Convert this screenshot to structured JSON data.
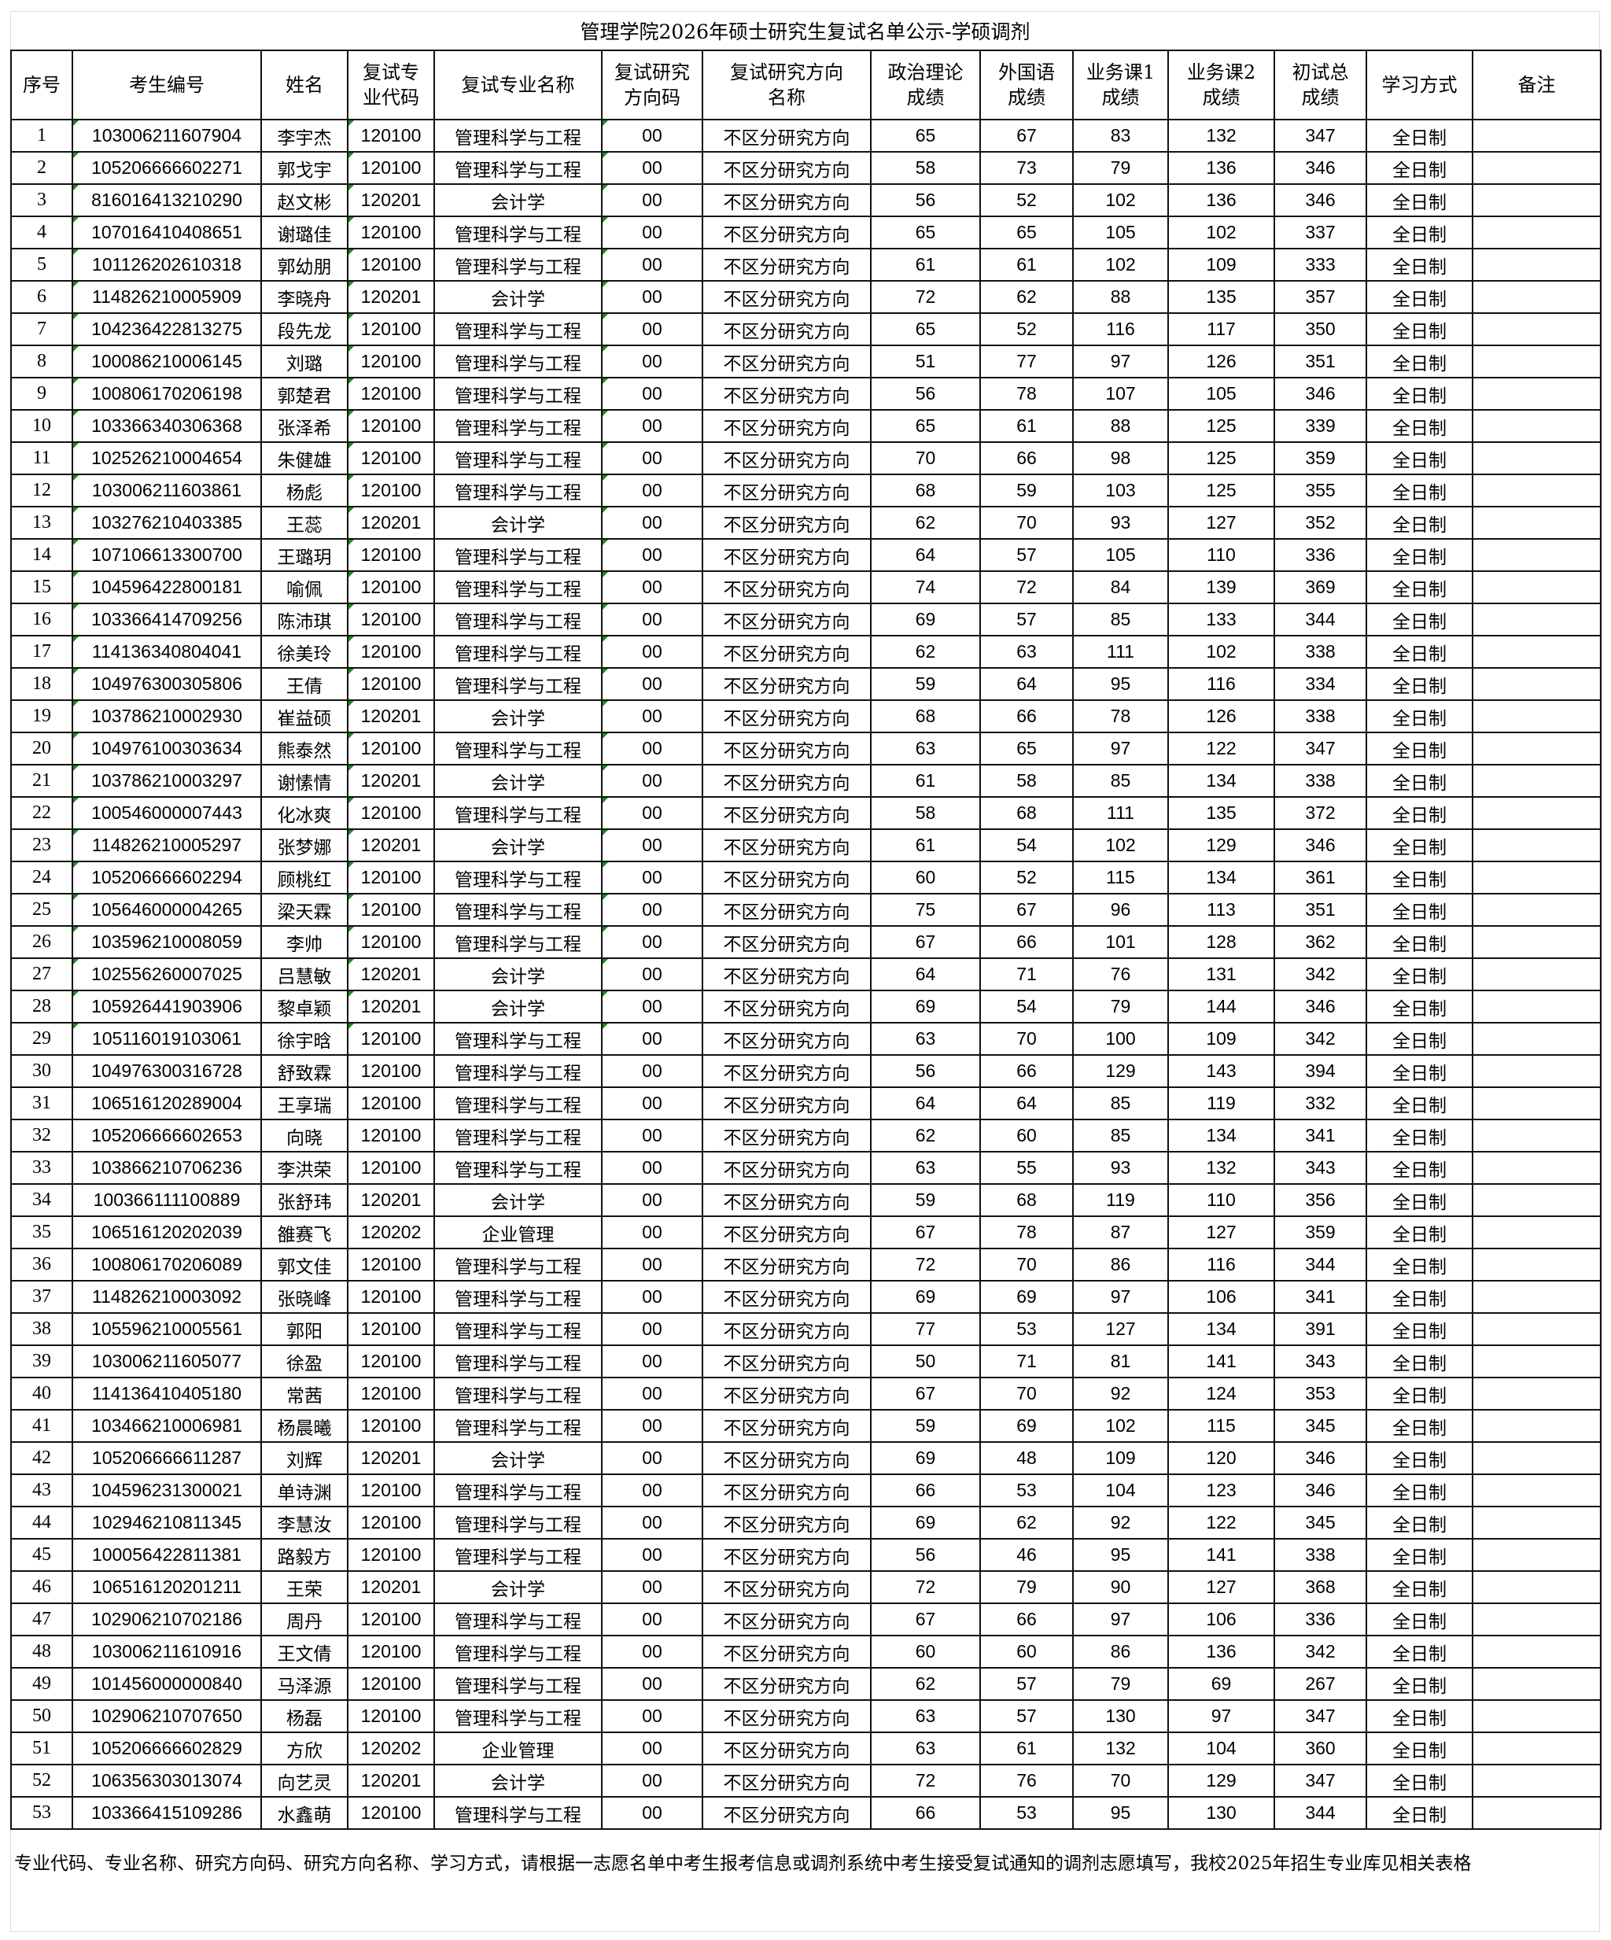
{
  "title": "管理学院2026年硕士研究生复试名单公示-学硕调剂",
  "headers": [
    "序号",
    "考生编号",
    "姓名",
    "复试专业代码",
    "复试专业名称",
    "复试研究方向码",
    "复试研究方向名称",
    "政治理论成绩",
    "外国语成绩",
    "业务课1成绩",
    "业务课2成绩",
    "初试总成绩",
    "学习方式",
    "备注"
  ],
  "header_lines": [
    [
      "序号"
    ],
    [
      "考生编号"
    ],
    [
      "姓名"
    ],
    [
      "复试专",
      "业代码"
    ],
    [
      "复试专业名称"
    ],
    [
      "复试研究",
      "方向码"
    ],
    [
      "复试研究方向",
      "名称"
    ],
    [
      "政治理论",
      "成绩"
    ],
    [
      "外国语",
      "成绩"
    ],
    [
      "业务课1",
      "成绩"
    ],
    [
      "业务课2",
      "成绩"
    ],
    [
      "初试总",
      "成绩"
    ],
    [
      "学习方式"
    ],
    [
      "备注"
    ]
  ],
  "marker_color": "#1f8a1f",
  "rows": [
    [
      "1",
      "103006211607904",
      "李宇杰",
      "120100",
      "管理科学与工程",
      "00",
      "不区分研究方向",
      "65",
      "67",
      "83",
      "132",
      "347",
      "全日制",
      ""
    ],
    [
      "2",
      "105206666602271",
      "郭戈宇",
      "120100",
      "管理科学与工程",
      "00",
      "不区分研究方向",
      "58",
      "73",
      "79",
      "136",
      "346",
      "全日制",
      ""
    ],
    [
      "3",
      "816016413210290",
      "赵文彬",
      "120201",
      "会计学",
      "00",
      "不区分研究方向",
      "56",
      "52",
      "102",
      "136",
      "346",
      "全日制",
      ""
    ],
    [
      "4",
      "107016410408651",
      "谢璐佳",
      "120100",
      "管理科学与工程",
      "00",
      "不区分研究方向",
      "65",
      "65",
      "105",
      "102",
      "337",
      "全日制",
      ""
    ],
    [
      "5",
      "101126202610318",
      "郭幼朋",
      "120100",
      "管理科学与工程",
      "00",
      "不区分研究方向",
      "61",
      "61",
      "102",
      "109",
      "333",
      "全日制",
      ""
    ],
    [
      "6",
      "114826210005909",
      "李晓舟",
      "120201",
      "会计学",
      "00",
      "不区分研究方向",
      "72",
      "62",
      "88",
      "135",
      "357",
      "全日制",
      ""
    ],
    [
      "7",
      "104236422813275",
      "段先龙",
      "120100",
      "管理科学与工程",
      "00",
      "不区分研究方向",
      "65",
      "52",
      "116",
      "117",
      "350",
      "全日制",
      ""
    ],
    [
      "8",
      "100086210006145",
      "刘璐",
      "120100",
      "管理科学与工程",
      "00",
      "不区分研究方向",
      "51",
      "77",
      "97",
      "126",
      "351",
      "全日制",
      ""
    ],
    [
      "9",
      "100806170206198",
      "郭楚君",
      "120100",
      "管理科学与工程",
      "00",
      "不区分研究方向",
      "56",
      "78",
      "107",
      "105",
      "346",
      "全日制",
      ""
    ],
    [
      "10",
      "103366340306368",
      "张泽希",
      "120100",
      "管理科学与工程",
      "00",
      "不区分研究方向",
      "65",
      "61",
      "88",
      "125",
      "339",
      "全日制",
      ""
    ],
    [
      "11",
      "102526210004654",
      "朱健雄",
      "120100",
      "管理科学与工程",
      "00",
      "不区分研究方向",
      "70",
      "66",
      "98",
      "125",
      "359",
      "全日制",
      ""
    ],
    [
      "12",
      "103006211603861",
      "杨彪",
      "120100",
      "管理科学与工程",
      "00",
      "不区分研究方向",
      "68",
      "59",
      "103",
      "125",
      "355",
      "全日制",
      ""
    ],
    [
      "13",
      "103276210403385",
      "王蕊",
      "120201",
      "会计学",
      "00",
      "不区分研究方向",
      "62",
      "70",
      "93",
      "127",
      "352",
      "全日制",
      ""
    ],
    [
      "14",
      "107106613300700",
      "王璐玥",
      "120100",
      "管理科学与工程",
      "00",
      "不区分研究方向",
      "64",
      "57",
      "105",
      "110",
      "336",
      "全日制",
      ""
    ],
    [
      "15",
      "104596422800181",
      "喻佩",
      "120100",
      "管理科学与工程",
      "00",
      "不区分研究方向",
      "74",
      "72",
      "84",
      "139",
      "369",
      "全日制",
      ""
    ],
    [
      "16",
      "103366414709256",
      "陈沛琪",
      "120100",
      "管理科学与工程",
      "00",
      "不区分研究方向",
      "69",
      "57",
      "85",
      "133",
      "344",
      "全日制",
      ""
    ],
    [
      "17",
      "114136340804041",
      "徐美玲",
      "120100",
      "管理科学与工程",
      "00",
      "不区分研究方向",
      "62",
      "63",
      "111",
      "102",
      "338",
      "全日制",
      ""
    ],
    [
      "18",
      "104976300305806",
      "王倩",
      "120100",
      "管理科学与工程",
      "00",
      "不区分研究方向",
      "59",
      "64",
      "95",
      "116",
      "334",
      "全日制",
      ""
    ],
    [
      "19",
      "103786210002930",
      "崔益硕",
      "120201",
      "会计学",
      "00",
      "不区分研究方向",
      "68",
      "66",
      "78",
      "126",
      "338",
      "全日制",
      ""
    ],
    [
      "20",
      "104976100303634",
      "熊泰然",
      "120100",
      "管理科学与工程",
      "00",
      "不区分研究方向",
      "63",
      "65",
      "97",
      "122",
      "347",
      "全日制",
      ""
    ],
    [
      "21",
      "103786210003297",
      "谢愫情",
      "120201",
      "会计学",
      "00",
      "不区分研究方向",
      "61",
      "58",
      "85",
      "134",
      "338",
      "全日制",
      ""
    ],
    [
      "22",
      "100546000007443",
      "化冰爽",
      "120100",
      "管理科学与工程",
      "00",
      "不区分研究方向",
      "58",
      "68",
      "111",
      "135",
      "372",
      "全日制",
      ""
    ],
    [
      "23",
      "114826210005297",
      "张梦娜",
      "120201",
      "会计学",
      "00",
      "不区分研究方向",
      "61",
      "54",
      "102",
      "129",
      "346",
      "全日制",
      ""
    ],
    [
      "24",
      "105206666602294",
      "顾桃红",
      "120100",
      "管理科学与工程",
      "00",
      "不区分研究方向",
      "60",
      "52",
      "115",
      "134",
      "361",
      "全日制",
      ""
    ],
    [
      "25",
      "105646000004265",
      "梁天霖",
      "120100",
      "管理科学与工程",
      "00",
      "不区分研究方向",
      "75",
      "67",
      "96",
      "113",
      "351",
      "全日制",
      ""
    ],
    [
      "26",
      "103596210008059",
      "李帅",
      "120100",
      "管理科学与工程",
      "00",
      "不区分研究方向",
      "67",
      "66",
      "101",
      "128",
      "362",
      "全日制",
      ""
    ],
    [
      "27",
      "102556260007025",
      "吕慧敏",
      "120201",
      "会计学",
      "00",
      "不区分研究方向",
      "64",
      "71",
      "76",
      "131",
      "342",
      "全日制",
      ""
    ],
    [
      "28",
      "105926441903906",
      "黎卓颖",
      "120201",
      "会计学",
      "00",
      "不区分研究方向",
      "69",
      "54",
      "79",
      "144",
      "346",
      "全日制",
      ""
    ],
    [
      "29",
      "105116019103061",
      "徐宇晗",
      "120100",
      "管理科学与工程",
      "00",
      "不区分研究方向",
      "63",
      "70",
      "100",
      "109",
      "342",
      "全日制",
      ""
    ],
    [
      "30",
      "104976300316728",
      "舒致霖",
      "120100",
      "管理科学与工程",
      "00",
      "不区分研究方向",
      "56",
      "66",
      "129",
      "143",
      "394",
      "全日制",
      ""
    ],
    [
      "31",
      "106516120289004",
      "王享瑞",
      "120100",
      "管理科学与工程",
      "00",
      "不区分研究方向",
      "64",
      "64",
      "85",
      "119",
      "332",
      "全日制",
      ""
    ],
    [
      "32",
      "105206666602653",
      "向晓",
      "120100",
      "管理科学与工程",
      "00",
      "不区分研究方向",
      "62",
      "60",
      "85",
      "134",
      "341",
      "全日制",
      ""
    ],
    [
      "33",
      "103866210706236",
      "李洪荣",
      "120100",
      "管理科学与工程",
      "00",
      "不区分研究方向",
      "63",
      "55",
      "93",
      "132",
      "343",
      "全日制",
      ""
    ],
    [
      "34",
      "100366111100889",
      "张舒玮",
      "120201",
      "会计学",
      "00",
      "不区分研究方向",
      "59",
      "68",
      "119",
      "110",
      "356",
      "全日制",
      ""
    ],
    [
      "35",
      "106516120202039",
      "雒赛飞",
      "120202",
      "企业管理",
      "00",
      "不区分研究方向",
      "67",
      "78",
      "87",
      "127",
      "359",
      "全日制",
      ""
    ],
    [
      "36",
      "100806170206089",
      "郭文佳",
      "120100",
      "管理科学与工程",
      "00",
      "不区分研究方向",
      "72",
      "70",
      "86",
      "116",
      "344",
      "全日制",
      ""
    ],
    [
      "37",
      "114826210003092",
      "张晓峰",
      "120100",
      "管理科学与工程",
      "00",
      "不区分研究方向",
      "69",
      "69",
      "97",
      "106",
      "341",
      "全日制",
      ""
    ],
    [
      "38",
      "105596210005561",
      "郭阳",
      "120100",
      "管理科学与工程",
      "00",
      "不区分研究方向",
      "77",
      "53",
      "127",
      "134",
      "391",
      "全日制",
      ""
    ],
    [
      "39",
      "103006211605077",
      "徐盈",
      "120100",
      "管理科学与工程",
      "00",
      "不区分研究方向",
      "50",
      "71",
      "81",
      "141",
      "343",
      "全日制",
      ""
    ],
    [
      "40",
      "114136410405180",
      "常茜",
      "120100",
      "管理科学与工程",
      "00",
      "不区分研究方向",
      "67",
      "70",
      "92",
      "124",
      "353",
      "全日制",
      ""
    ],
    [
      "41",
      "103466210006981",
      "杨晨曦",
      "120100",
      "管理科学与工程",
      "00",
      "不区分研究方向",
      "59",
      "69",
      "102",
      "115",
      "345",
      "全日制",
      ""
    ],
    [
      "42",
      "105206666611287",
      "刘辉",
      "120201",
      "会计学",
      "00",
      "不区分研究方向",
      "69",
      "48",
      "109",
      "120",
      "346",
      "全日制",
      ""
    ],
    [
      "43",
      "104596231300021",
      "单诗渊",
      "120100",
      "管理科学与工程",
      "00",
      "不区分研究方向",
      "66",
      "53",
      "104",
      "123",
      "346",
      "全日制",
      ""
    ],
    [
      "44",
      "102946210811345",
      "李慧汝",
      "120100",
      "管理科学与工程",
      "00",
      "不区分研究方向",
      "69",
      "62",
      "92",
      "122",
      "345",
      "全日制",
      ""
    ],
    [
      "45",
      "100056422811381",
      "路毅方",
      "120100",
      "管理科学与工程",
      "00",
      "不区分研究方向",
      "56",
      "46",
      "95",
      "141",
      "338",
      "全日制",
      ""
    ],
    [
      "46",
      "106516120201211",
      "王荣",
      "120201",
      "会计学",
      "00",
      "不区分研究方向",
      "72",
      "79",
      "90",
      "127",
      "368",
      "全日制",
      ""
    ],
    [
      "47",
      "102906210702186",
      "周丹",
      "120100",
      "管理科学与工程",
      "00",
      "不区分研究方向",
      "67",
      "66",
      "97",
      "106",
      "336",
      "全日制",
      ""
    ],
    [
      "48",
      "103006211610916",
      "王文倩",
      "120100",
      "管理科学与工程",
      "00",
      "不区分研究方向",
      "60",
      "60",
      "86",
      "136",
      "342",
      "全日制",
      ""
    ],
    [
      "49",
      "101456000000840",
      "马泽源",
      "120100",
      "管理科学与工程",
      "00",
      "不区分研究方向",
      "62",
      "57",
      "79",
      "69",
      "267",
      "全日制",
      ""
    ],
    [
      "50",
      "102906210707650",
      "杨磊",
      "120100",
      "管理科学与工程",
      "00",
      "不区分研究方向",
      "63",
      "57",
      "130",
      "97",
      "347",
      "全日制",
      ""
    ],
    [
      "51",
      "105206666602829",
      "方欣",
      "120202",
      "企业管理",
      "00",
      "不区分研究方向",
      "63",
      "61",
      "132",
      "104",
      "360",
      "全日制",
      ""
    ],
    [
      "52",
      "106356303013074",
      "向艺灵",
      "120201",
      "会计学",
      "00",
      "不区分研究方向",
      "72",
      "76",
      "70",
      "129",
      "347",
      "全日制",
      ""
    ],
    [
      "53",
      "103366415109286",
      "水鑫萌",
      "120100",
      "管理科学与工程",
      "00",
      "不区分研究方向",
      "66",
      "53",
      "95",
      "130",
      "344",
      "全日制",
      ""
    ]
  ],
  "note": "专业代码、专业名称、研究方向码、研究方向名称、学习方式，请根据一志愿名单中考生报考信息或调剂系统中考生接受复试通知的调剂志愿填写，我校2025年招生专业库见相关表格"
}
